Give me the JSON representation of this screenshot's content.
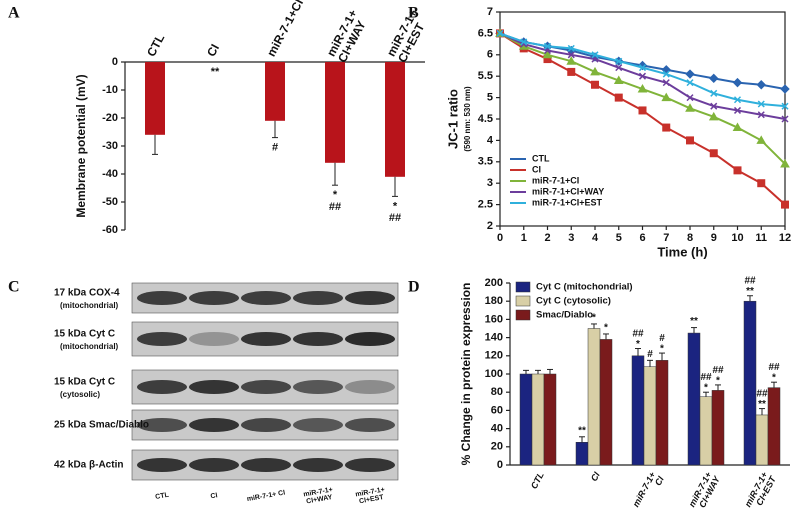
{
  "panels": {
    "a": "A",
    "b": "B",
    "c": "C",
    "d": "D"
  },
  "chart_data": [
    {
      "type": "bar",
      "ylabel": "Membrane potential (mV)",
      "color": "#b8141b",
      "categories": [
        "CTL",
        "CI",
        "miR-7-1+CI",
        "miR-7-1+\nCI+WAY",
        "miR-7-1+\nCI+EST"
      ],
      "values": [
        -26,
        null,
        -21,
        -36,
        -41
      ],
      "errors": [
        7,
        null,
        6,
        8,
        7
      ],
      "annotations": [
        null,
        "**",
        "#",
        "*\n##",
        "*\n##"
      ],
      "ylim": [
        -60,
        0
      ],
      "yticks": [
        0,
        -10,
        -20,
        -30,
        -40,
        -50,
        -60
      ]
    },
    {
      "type": "line",
      "ylabel": "JC-1 ratio",
      "subtitle": "(590 nm: 530 nm)",
      "xlabel": "Time (h)",
      "legend": "lower-left",
      "x": [
        0,
        1,
        2,
        3,
        4,
        5,
        6,
        7,
        8,
        9,
        10,
        11,
        12
      ],
      "series": [
        {
          "name": "CTL",
          "color": "#2a64b0",
          "marker": "diamond",
          "values": [
            6.5,
            6.3,
            6.2,
            6.1,
            5.95,
            5.85,
            5.75,
            5.65,
            5.55,
            5.45,
            5.35,
            5.3,
            5.2
          ]
        },
        {
          "name": "CI",
          "color": "#c8312b",
          "marker": "square",
          "values": [
            6.5,
            6.15,
            5.9,
            5.6,
            5.3,
            5.0,
            4.7,
            4.3,
            4.0,
            3.7,
            3.3,
            3.0,
            2.5
          ]
        },
        {
          "name": "miR-7-1+CI",
          "color": "#80b43a",
          "marker": "triangle",
          "values": [
            6.5,
            6.2,
            6.0,
            5.85,
            5.6,
            5.4,
            5.2,
            5.0,
            4.75,
            4.55,
            4.3,
            4.0,
            3.45
          ]
        },
        {
          "name": "miR-7-1+CI+WAY",
          "color": "#6c3d9c",
          "marker": "x",
          "values": [
            6.5,
            6.25,
            6.1,
            6.0,
            5.9,
            5.7,
            5.5,
            5.35,
            5.0,
            4.8,
            4.7,
            4.6,
            4.5
          ]
        },
        {
          "name": "miR-7-1+CI+EST",
          "color": "#2fb0dc",
          "marker": "x",
          "values": [
            6.5,
            6.3,
            6.2,
            6.15,
            6.0,
            5.85,
            5.7,
            5.55,
            5.35,
            5.1,
            4.95,
            4.85,
            4.8
          ]
        }
      ],
      "xlim": [
        0,
        12
      ],
      "xticks": [
        0,
        1,
        2,
        3,
        4,
        5,
        6,
        7,
        8,
        9,
        10,
        11,
        12
      ],
      "ylim": [
        2,
        7
      ],
      "yticks": [
        2,
        2.5,
        3,
        3.5,
        4,
        4.5,
        5,
        5.5,
        6,
        6.5,
        7
      ]
    },
    {
      "type": "grouped_bar",
      "ylabel": "% Change in protein expression",
      "legend": "upper-left",
      "categories": [
        "CTL",
        "CI",
        "miR-7-1+\nCI",
        "miR-7-1+\nCI+WAY",
        "miR-7-1+\nCI+EST"
      ],
      "series": [
        {
          "name": "Cyt C (mitochondrial)",
          "color": "#1b2480",
          "values": [
            100,
            25,
            120,
            145,
            180
          ],
          "errors": [
            4,
            6,
            8,
            6,
            6
          ],
          "annotations": [
            null,
            "**",
            "##\n*",
            "**",
            "##\n**"
          ]
        },
        {
          "name": "Cyt C (cytosolic)",
          "color": "#d8cfa6",
          "values": [
            100,
            150,
            108,
            75,
            55
          ],
          "errors": [
            4,
            5,
            7,
            5,
            7
          ],
          "annotations": [
            null,
            "*",
            "#",
            "##\n*",
            "##\n**"
          ]
        },
        {
          "name": "Smac/Diablo",
          "color": "#7a1b1c",
          "values": [
            100,
            138,
            115,
            82,
            85
          ],
          "errors": [
            5,
            6,
            8,
            6,
            6
          ],
          "annotations": [
            null,
            "*",
            "#\n*",
            "##\n*",
            "##\n*"
          ]
        }
      ],
      "ylim": [
        0,
        200
      ],
      "yticks": [
        0,
        20,
        40,
        60,
        80,
        100,
        120,
        140,
        160,
        180,
        200
      ]
    }
  ],
  "blot": {
    "rows": [
      {
        "label": "17 kDa COX-4",
        "sublabel": "(mitochondrial)"
      },
      {
        "label": "15 kDa Cyt C",
        "sublabel": "(mitochondrial)"
      },
      {
        "label": "15 kDa Cyt C",
        "sublabel": "(cytosolic)"
      },
      {
        "label": "25 kDa Smac/Diablo"
      },
      {
        "label": "42 kDa β-Actin"
      }
    ],
    "lanes": [
      "CTL",
      "CI",
      "miR-7-1+ CI",
      "miR-7-1+\nCI+WAY",
      "miR-7-1+\nCI+EST"
    ]
  }
}
